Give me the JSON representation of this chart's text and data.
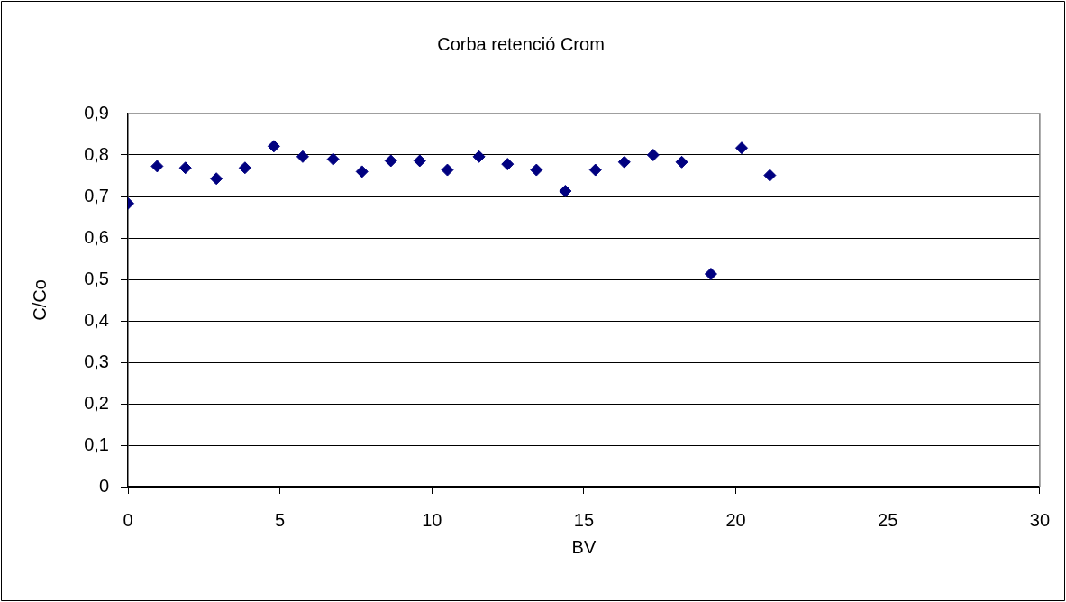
{
  "chart_data": {
    "type": "scatter",
    "title": "Corba retenció Crom",
    "xlabel": "BV",
    "ylabel": "C/Co",
    "x": [
      0,
      0.96,
      1.89,
      2.91,
      3.85,
      4.8,
      5.75,
      6.75,
      7.7,
      8.65,
      9.6,
      10.51,
      11.55,
      12.49,
      13.44,
      14.39,
      15.38,
      16.33,
      17.28,
      18.22,
      19.18,
      20.19,
      21.12
    ],
    "values": [
      0.683,
      0.773,
      0.769,
      0.743,
      0.769,
      0.821,
      0.796,
      0.79,
      0.76,
      0.786,
      0.786,
      0.764,
      0.796,
      0.778,
      0.764,
      0.713,
      0.764,
      0.783,
      0.8,
      0.783,
      0.513,
      0.817,
      0.751
    ],
    "color": "#000080",
    "marker": "diamond",
    "grid": "y",
    "xlim": [
      0,
      30
    ],
    "xticks": [
      0,
      5,
      10,
      15,
      20,
      25,
      30
    ],
    "ylim": [
      0,
      0.9
    ],
    "yticks": [
      0,
      {
        "value": 0.1,
        "label": "0,1"
      },
      {
        "value": 0.2,
        "label": "0,2"
      },
      {
        "value": 0.3,
        "label": "0,3"
      },
      {
        "value": 0.4,
        "label": "0,4"
      },
      {
        "value": 0.5,
        "label": "0,5"
      },
      {
        "value": 0.6,
        "label": "0,6"
      },
      {
        "value": 0.7,
        "label": "0,7"
      },
      {
        "value": 0.8,
        "label": "0,8"
      },
      {
        "value": 0.9,
        "label": "0,9"
      }
    ]
  }
}
